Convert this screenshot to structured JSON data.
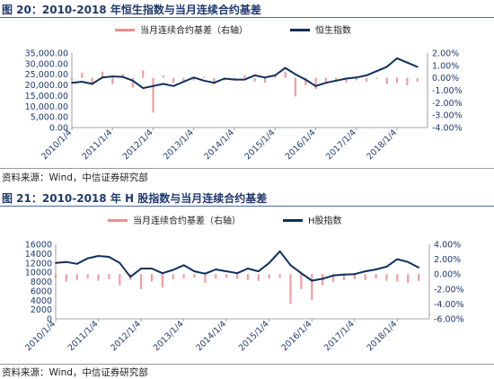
{
  "figure1": {
    "caption": "图 20：2010-2018 年恒生指数与当月连续合约基差",
    "source": "资料来源：Wind，中信证券研究部"
  },
  "figure2": {
    "caption": "图 21：2010-2018 年 H 股指数与当月连续合约基差",
    "source": "资料来源：Wind，中信证券研究部"
  },
  "colors": {
    "index": "#0d2e5e",
    "basis": "#f08c8c",
    "axis_text": "#1f3a6e"
  },
  "chart_data": [
    {
      "type": "line",
      "legend_placement": "top-center",
      "x_ticks": [
        "2010/1/4",
        "2011/1/4",
        "2012/1/4",
        "2013/1/4",
        "2014/1/4",
        "2015/1/4",
        "2016/1/4",
        "2017/1/4",
        "2018/1/4"
      ],
      "y_left": {
        "ylim": [
          0,
          35000
        ],
        "ticks": [
          "0.00",
          "5,000.00",
          "10,000.00",
          "15,000.00",
          "20,000.00",
          "25,000.00",
          "30,000.00",
          "35,000.00"
        ]
      },
      "y_right": {
        "ylim": [
          -4,
          2
        ],
        "ticks": [
          "-4.00%",
          "-3.00%",
          "-2.00%",
          "-1.00%",
          "0.00%",
          "1.00%",
          "2.00%"
        ]
      },
      "series": [
        {
          "name": "当月连续合约基差（右轴）",
          "axis": "right",
          "style": "bar",
          "x": [
            "2010-01",
            "2010-04",
            "2010-07",
            "2010-10",
            "2011-01",
            "2011-04",
            "2011-07",
            "2011-10",
            "2012-01",
            "2012-04",
            "2012-07",
            "2012-10",
            "2013-01",
            "2013-04",
            "2013-07",
            "2013-10",
            "2014-01",
            "2014-04",
            "2014-07",
            "2014-10",
            "2015-01",
            "2015-04",
            "2015-07",
            "2015-10",
            "2016-01",
            "2016-04",
            "2016-07",
            "2016-10",
            "2017-01",
            "2017-04",
            "2017-07",
            "2017-10",
            "2018-01",
            "2018-04",
            "2018-07"
          ],
          "values": [
            -0.2,
            0.4,
            -0.6,
            0.5,
            -0.5,
            0.3,
            -0.8,
            0.6,
            -2.8,
            0.2,
            -0.4,
            -0.3,
            -0.2,
            0.1,
            -0.5,
            -0.2,
            -0.1,
            0.2,
            -0.3,
            -0.4,
            0.2,
            0.5,
            -1.5,
            -0.6,
            -0.9,
            -0.3,
            -0.2,
            -0.4,
            -0.2,
            -0.3,
            -0.1,
            -0.5,
            -0.4,
            -0.6,
            -0.3
          ]
        },
        {
          "name": "恒生指数",
          "axis": "left",
          "style": "line",
          "x": [
            "2010-01",
            "2010-04",
            "2010-07",
            "2010-10",
            "2011-01",
            "2011-04",
            "2011-07",
            "2011-10",
            "2012-01",
            "2012-04",
            "2012-07",
            "2012-10",
            "2013-01",
            "2013-04",
            "2013-07",
            "2013-10",
            "2014-01",
            "2014-04",
            "2014-07",
            "2014-10",
            "2015-01",
            "2015-04",
            "2015-07",
            "2015-10",
            "2016-01",
            "2016-04",
            "2016-07",
            "2016-10",
            "2017-01",
            "2017-04",
            "2017-07",
            "2017-10",
            "2018-01",
            "2018-04",
            "2018-07"
          ],
          "values": [
            21000,
            21500,
            20500,
            23500,
            24000,
            23800,
            22000,
            18500,
            19500,
            20500,
            19500,
            21500,
            23500,
            22000,
            21000,
            23000,
            22500,
            22500,
            24500,
            23500,
            24500,
            28000,
            25000,
            22500,
            19500,
            21000,
            22000,
            23000,
            23500,
            24500,
            26500,
            28500,
            32500,
            30500,
            28500
          ]
        }
      ]
    },
    {
      "type": "line",
      "legend_placement": "top-center",
      "x_ticks": [
        "2010/1/4",
        "2011/1/4",
        "2012/1/4",
        "2013/1/4",
        "2014/1/4",
        "2015/1/4",
        "2016/1/4",
        "2017/1/4",
        "2018/1/4"
      ],
      "y_left": {
        "ylim": [
          0,
          16000
        ],
        "ticks": [
          "0",
          "2000",
          "4000",
          "6000",
          "8000",
          "10000",
          "12000",
          "14000",
          "16000"
        ]
      },
      "y_right": {
        "ylim": [
          -6,
          4
        ],
        "ticks": [
          "-6.00%",
          "-4.00%",
          "-2.00%",
          "0.00%",
          "2.00%",
          "4.00%"
        ]
      },
      "series": [
        {
          "name": "当月连续合约基差（右轴）",
          "axis": "right",
          "style": "bar",
          "x": [
            "2010-01",
            "2010-04",
            "2010-07",
            "2010-10",
            "2011-01",
            "2011-04",
            "2011-07",
            "2011-10",
            "2012-01",
            "2012-04",
            "2012-07",
            "2012-10",
            "2013-01",
            "2013-04",
            "2013-07",
            "2013-10",
            "2014-01",
            "2014-04",
            "2014-07",
            "2014-10",
            "2015-01",
            "2015-04",
            "2015-07",
            "2015-10",
            "2016-01",
            "2016-04",
            "2016-07",
            "2016-10",
            "2017-01",
            "2017-04",
            "2017-07",
            "2017-10",
            "2018-01",
            "2018-04",
            "2018-07"
          ],
          "values": [
            -0.5,
            -1.0,
            -0.8,
            -0.6,
            -0.9,
            -0.7,
            -1.5,
            -0.8,
            -2.0,
            -1.0,
            -1.8,
            -0.7,
            -0.6,
            -0.5,
            -1.2,
            -0.6,
            -0.5,
            -0.6,
            -0.8,
            -0.9,
            -0.6,
            -0.5,
            -4.0,
            -2.0,
            -3.5,
            -1.5,
            -1.0,
            -0.8,
            -0.7,
            -0.8,
            -0.6,
            -0.9,
            -1.0,
            -1.2,
            -0.9
          ]
        },
        {
          "name": "H股指数",
          "axis": "left",
          "style": "line",
          "x": [
            "2010-01",
            "2010-04",
            "2010-07",
            "2010-10",
            "2011-01",
            "2011-04",
            "2011-07",
            "2011-10",
            "2012-01",
            "2012-04",
            "2012-07",
            "2012-10",
            "2013-01",
            "2013-04",
            "2013-07",
            "2013-10",
            "2014-01",
            "2014-04",
            "2014-07",
            "2014-10",
            "2015-01",
            "2015-04",
            "2015-07",
            "2015-10",
            "2016-01",
            "2016-04",
            "2016-07",
            "2016-10",
            "2017-01",
            "2017-04",
            "2017-07",
            "2017-10",
            "2018-01",
            "2018-04",
            "2018-07"
          ],
          "values": [
            12000,
            12200,
            11800,
            13000,
            13500,
            13300,
            12000,
            9000,
            10800,
            10800,
            9800,
            10500,
            11500,
            10200,
            9700,
            10600,
            10200,
            9800,
            10800,
            10200,
            12000,
            14500,
            11500,
            9800,
            8200,
            8600,
            9300,
            9500,
            9600,
            10200,
            10600,
            11200,
            12800,
            12200,
            11000
          ]
        }
      ]
    }
  ]
}
